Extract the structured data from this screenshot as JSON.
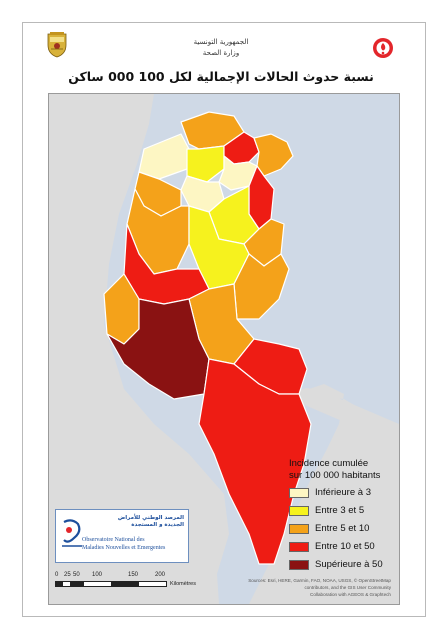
{
  "header": {
    "line1": "الجمهورية التونسية",
    "line2": "وزارة الصحة"
  },
  "title": "نسبة حدوث الحالات الإجمالية لكل 100 000 ساكن",
  "legend": {
    "title_line1": "Incidence cumulée",
    "title_line2": "sur 100 000 habitants",
    "items": [
      {
        "label": "Inférieure à 3",
        "color": "#fdf6c3"
      },
      {
        "label": "Entre 3 et 5",
        "color": "#f6f21e"
      },
      {
        "label": "Entre 5 et 10",
        "color": "#f4a21a"
      },
      {
        "label": "Entre 10 et 50",
        "color": "#ee1c14"
      },
      {
        "label": "Supérieure à 50",
        "color": "#8a1212"
      }
    ]
  },
  "scale": {
    "ticks": [
      "0",
      "25",
      "50",
      "100",
      "150",
      "200"
    ],
    "unit": "Kilomètres"
  },
  "sources": {
    "line1": "Sources: Esri, HERE, Garmin, FAO, NOAA, USGS, © OpenStreetMap",
    "line2": "contributors, and the GIS User Community",
    "line3": "Collaboration with AGEOS & Graphtech"
  },
  "observatory": {
    "ar_line1": "المرصد الوطني للأمراض",
    "ar_line2": "الجديدة و المستجدة",
    "fr_line1": "Observatoire National des",
    "fr_line2": "Maladies Nouvelles et Emergentes"
  },
  "colors": {
    "water": "#cfd9e6",
    "land": "#dcdcdc",
    "border": "#ffffff"
  },
  "icons": {
    "left_logo": "tunisia-coat-of-arms-icon",
    "right_logo": "ministry-of-health-icon"
  }
}
